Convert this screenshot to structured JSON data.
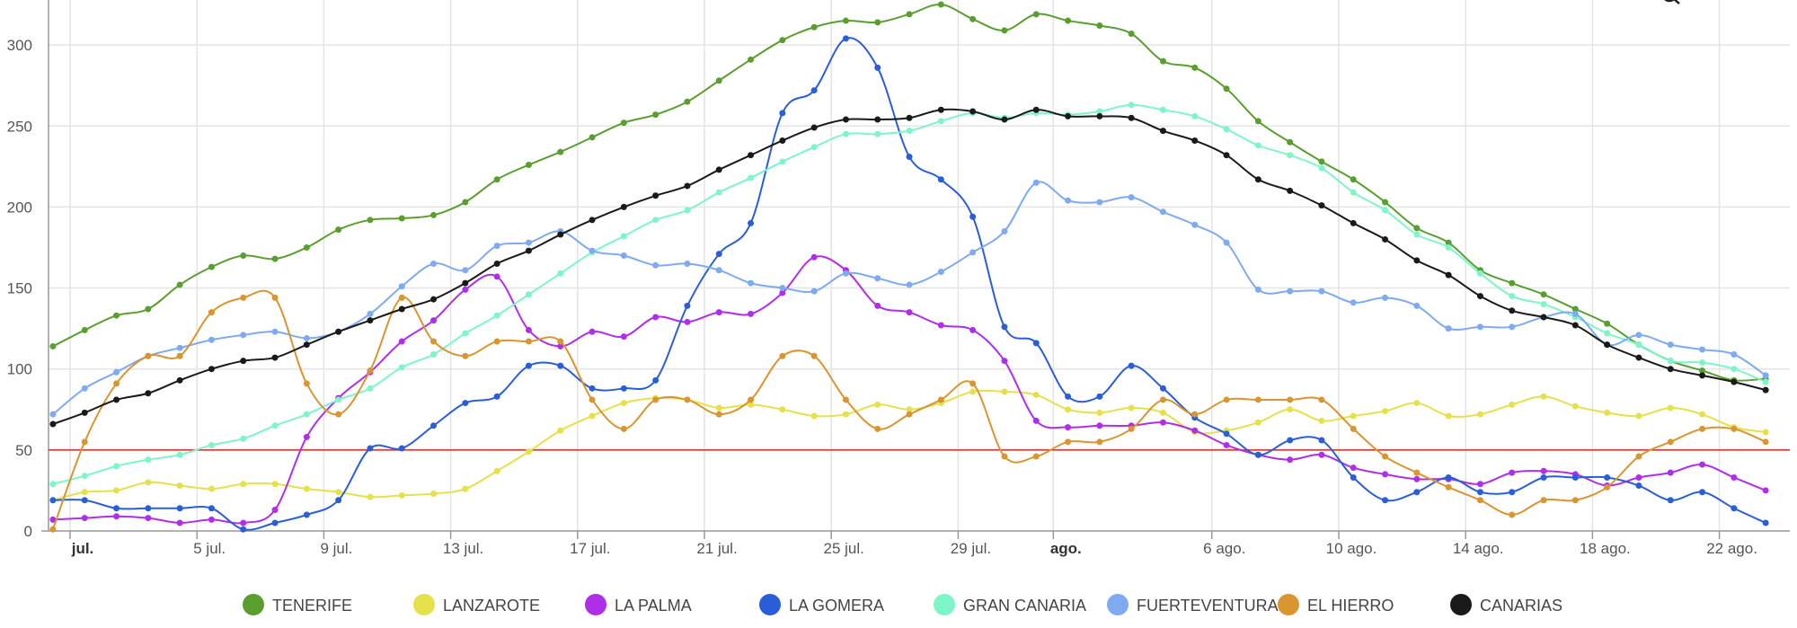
{
  "chart_data": {
    "type": "line",
    "title": "",
    "xlabel": "",
    "ylabel": "",
    "ylim": [
      0,
      325
    ],
    "yticks": [
      0,
      50,
      100,
      150,
      200,
      250,
      300
    ],
    "grid": true,
    "legend_position": "bottom",
    "threshold": {
      "value": 50,
      "color": "#e02424"
    },
    "xtick_labels": [
      {
        "date": "07-01",
        "label": "jul.",
        "bold": true
      },
      {
        "date": "07-05",
        "label": "5 jul."
      },
      {
        "date": "07-09",
        "label": "9 jul."
      },
      {
        "date": "07-13",
        "label": "13 jul."
      },
      {
        "date": "07-17",
        "label": "17 jul."
      },
      {
        "date": "07-21",
        "label": "21 jul."
      },
      {
        "date": "07-25",
        "label": "25 jul."
      },
      {
        "date": "07-29",
        "label": "29 jul."
      },
      {
        "date": "08-01",
        "label": "ago.",
        "bold": true
      },
      {
        "date": "08-06",
        "label": "6 ago."
      },
      {
        "date": "08-10",
        "label": "10 ago."
      },
      {
        "date": "08-14",
        "label": "14 ago."
      },
      {
        "date": "08-18",
        "label": "18 ago."
      },
      {
        "date": "08-22",
        "label": "22 ago."
      }
    ],
    "x": [
      "06-30",
      "07-01",
      "07-02",
      "07-03",
      "07-04",
      "07-05",
      "07-06",
      "07-07",
      "07-08",
      "07-09",
      "07-10",
      "07-11",
      "07-12",
      "07-13",
      "07-14",
      "07-15",
      "07-16",
      "07-17",
      "07-18",
      "07-19",
      "07-20",
      "07-21",
      "07-22",
      "07-23",
      "07-24",
      "07-25",
      "07-26",
      "07-27",
      "07-28",
      "07-29",
      "07-30",
      "07-31",
      "08-01",
      "08-02",
      "08-03",
      "08-04",
      "08-05",
      "08-06",
      "08-07",
      "08-08",
      "08-09",
      "08-10",
      "08-11",
      "08-12",
      "08-13",
      "08-14",
      "08-15",
      "08-16",
      "08-17",
      "08-18",
      "08-19",
      "08-20",
      "08-21",
      "08-22",
      "08-23"
    ],
    "series": [
      {
        "name": "TENERIFE",
        "color": "#5a9e2f",
        "values": [
          114,
          124,
          133,
          137,
          152,
          163,
          170,
          168,
          175,
          186,
          192,
          193,
          195,
          203,
          217,
          226,
          234,
          243,
          252,
          257,
          265,
          278,
          291,
          303,
          311,
          315,
          314,
          319,
          325,
          316,
          309,
          319,
          315,
          312,
          307,
          290,
          286,
          273,
          253,
          240,
          228,
          217,
          203,
          187,
          178,
          161,
          153,
          146,
          137,
          128,
          115,
          105,
          99,
          93,
          94
        ]
      },
      {
        "name": "LANZAROTE",
        "color": "#e4e14a",
        "values": [
          19,
          24,
          25,
          30,
          28,
          26,
          29,
          29,
          26,
          24,
          21,
          22,
          23,
          26,
          37,
          49,
          62,
          71,
          79,
          82,
          81,
          76,
          78,
          75,
          71,
          72,
          78,
          75,
          79,
          86,
          86,
          84,
          75,
          73,
          76,
          73,
          61,
          62,
          67,
          75,
          68,
          71,
          74,
          79,
          71,
          72,
          78,
          83,
          77,
          73,
          71,
          76,
          72,
          64,
          61
        ]
      },
      {
        "name": "LA PALMA",
        "color": "#b02ee8",
        "values": [
          7,
          8,
          9,
          8,
          5,
          7,
          5,
          13,
          58,
          82,
          98,
          117,
          130,
          149,
          157,
          124,
          114,
          123,
          120,
          132,
          129,
          135,
          134,
          147,
          169,
          161,
          139,
          135,
          127,
          124,
          105,
          68,
          64,
          65,
          65,
          67,
          62,
          53,
          47,
          44,
          47,
          39,
          35,
          32,
          32,
          29,
          36,
          37,
          35,
          28,
          33,
          36,
          41,
          33,
          25
        ]
      },
      {
        "name": "LA GOMERA",
        "color": "#2a5ed8",
        "values": [
          19,
          19,
          14,
          14,
          14,
          14,
          1,
          5,
          10,
          19,
          51,
          51,
          65,
          79,
          83,
          102,
          102,
          88,
          88,
          93,
          139,
          171,
          190,
          258,
          272,
          304,
          286,
          231,
          217,
          194,
          126,
          116,
          83,
          83,
          102,
          88,
          70,
          60,
          47,
          56,
          56,
          33,
          19,
          24,
          33,
          24,
          24,
          33,
          33,
          33,
          28,
          19,
          24,
          14,
          5
        ]
      },
      {
        "name": "GRAN CANARIA",
        "color": "#7ef5c8",
        "values": [
          29,
          34,
          40,
          44,
          47,
          53,
          57,
          65,
          72,
          81,
          88,
          101,
          109,
          122,
          133,
          146,
          159,
          172,
          182,
          192,
          198,
          209,
          218,
          228,
          237,
          245,
          245,
          247,
          253,
          258,
          255,
          258,
          257,
          259,
          263,
          260,
          256,
          248,
          238,
          232,
          224,
          209,
          198,
          183,
          175,
          159,
          145,
          140,
          132,
          122,
          115,
          105,
          104,
          100,
          92
        ]
      },
      {
        "name": "FUERTEVENTURA",
        "color": "#7eaaf0",
        "values": [
          72,
          88,
          98,
          108,
          113,
          118,
          121,
          123,
          119,
          123,
          134,
          151,
          165,
          161,
          176,
          178,
          185,
          173,
          170,
          164,
          165,
          161,
          153,
          150,
          148,
          159,
          156,
          152,
          160,
          172,
          185,
          215,
          204,
          203,
          206,
          197,
          189,
          178,
          149,
          148,
          148,
          141,
          144,
          139,
          125,
          126,
          126,
          132,
          134,
          115,
          121,
          115,
          112,
          109,
          96
        ]
      },
      {
        "name": "EL HIERRO",
        "color": "#d9952f",
        "values": [
          1,
          55,
          91,
          108,
          108,
          135,
          144,
          144,
          91,
          72,
          99,
          144,
          117,
          108,
          117,
          117,
          117,
          81,
          63,
          81,
          81,
          72,
          81,
          108,
          108,
          81,
          63,
          72,
          81,
          91,
          46,
          46,
          55,
          55,
          63,
          81,
          72,
          81,
          81,
          81,
          81,
          63,
          46,
          36,
          27,
          19,
          10,
          19,
          19,
          27,
          46,
          55,
          63,
          63,
          55
        ]
      },
      {
        "name": "CANARIAS",
        "color": "#1a1a1a",
        "values": [
          66,
          73,
          81,
          85,
          93,
          100,
          105,
          107,
          115,
          123,
          130,
          137,
          143,
          153,
          165,
          173,
          183,
          192,
          200,
          207,
          213,
          223,
          232,
          241,
          249,
          254,
          254,
          255,
          260,
          259,
          254,
          260,
          256,
          256,
          255,
          247,
          241,
          232,
          217,
          210,
          201,
          190,
          180,
          167,
          158,
          145,
          136,
          132,
          127,
          115,
          107,
          100,
          96,
          92,
          87
        ]
      }
    ]
  },
  "toolbar": {
    "icon": "search-icon"
  }
}
